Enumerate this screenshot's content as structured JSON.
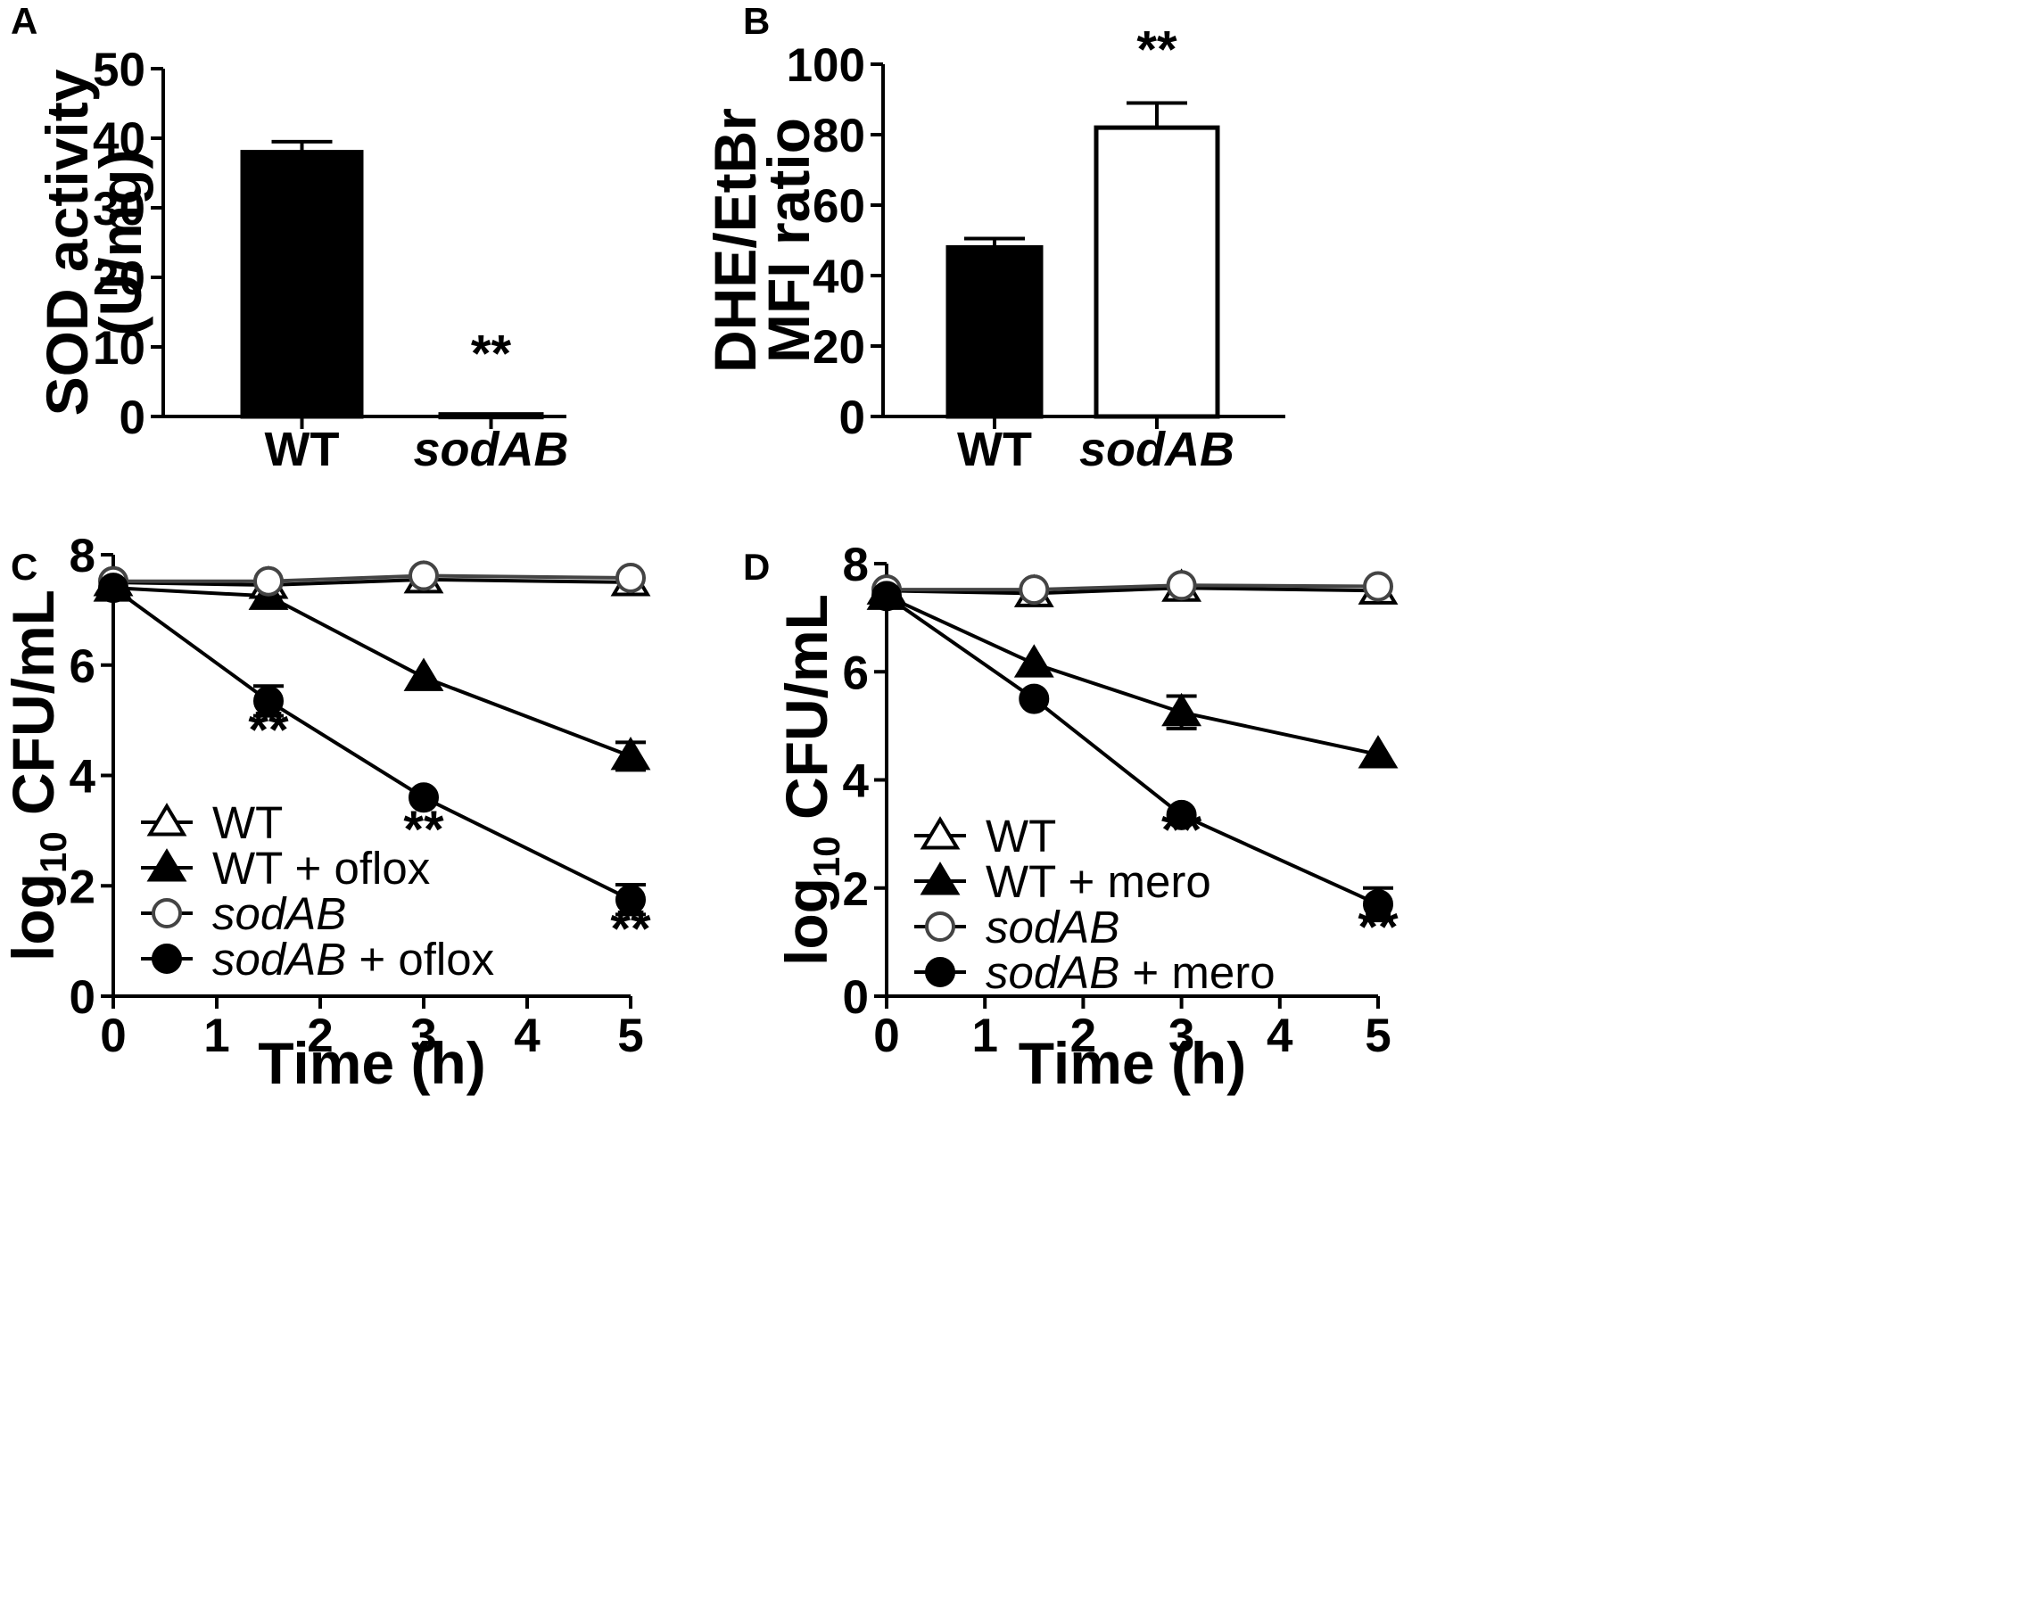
{
  "chart_data": [
    {
      "panel": "A",
      "type": "bar",
      "categories": [
        "WT",
        "sodAB"
      ],
      "category_italic": [
        false,
        true
      ],
      "values": [
        38,
        0.3
      ],
      "errors": [
        1.5,
        0
      ],
      "bar_fill": [
        "#000000",
        "#000000"
      ],
      "ylabel_lines": [
        "SOD activity",
        "(U/mg)"
      ],
      "ylim": [
        0,
        50
      ],
      "yticks": [
        0,
        10,
        20,
        30,
        40,
        50
      ],
      "annotations": [
        {
          "category": "sodAB",
          "text": "**"
        }
      ]
    },
    {
      "panel": "B",
      "type": "bar",
      "categories": [
        "WT",
        "sodAB"
      ],
      "category_italic": [
        false,
        true
      ],
      "values": [
        48,
        82
      ],
      "errors": [
        2.5,
        7
      ],
      "bar_fill": [
        "#000000",
        "#ffffff"
      ],
      "ylabel_lines": [
        "DHE/EtBr",
        "MFI ratio"
      ],
      "ylim": [
        0,
        100
      ],
      "yticks": [
        0,
        20,
        40,
        60,
        80,
        100
      ],
      "annotations": [
        {
          "category": "sodAB",
          "text": "**"
        }
      ]
    },
    {
      "panel": "C",
      "type": "line",
      "xlabel": "Time (h)",
      "ylabel_main": "log",
      "ylabel_sub": "10",
      "ylabel_rest": " CFU/mL",
      "xlim": [
        0,
        5
      ],
      "ylim": [
        0,
        8
      ],
      "xticks": [
        0,
        1,
        2,
        3,
        4,
        5
      ],
      "yticks": [
        0,
        2,
        4,
        6,
        8
      ],
      "series": [
        {
          "name": "WT",
          "marker": "triangle-open",
          "color": "#000000",
          "x": [
            0,
            1.5,
            3,
            5
          ],
          "y": [
            7.5,
            7.45,
            7.55,
            7.5
          ],
          "err": [
            0,
            0,
            0,
            0
          ]
        },
        {
          "name": "WT + oflox",
          "marker": "triangle-filled",
          "color": "#000000",
          "x": [
            0,
            1.5,
            3,
            5
          ],
          "y": [
            7.4,
            7.25,
            5.78,
            4.35
          ],
          "err": [
            0,
            0,
            0,
            0.25
          ]
        },
        {
          "name": "sodAB",
          "marker": "circle-open",
          "color": "#444444",
          "x": [
            0,
            1.5,
            3,
            5
          ],
          "y": [
            7.52,
            7.52,
            7.62,
            7.58
          ],
          "err": [
            0,
            0,
            0,
            0
          ]
        },
        {
          "name": "sodAB + oflox",
          "marker": "circle-filled",
          "color": "#000000",
          "x": [
            0,
            1.5,
            3,
            5
          ],
          "y": [
            7.4,
            5.35,
            3.6,
            1.75
          ],
          "err": [
            0,
            0.27,
            0,
            0.27
          ]
        }
      ],
      "legend": [
        {
          "marker": "triangle-open",
          "italic": "",
          "plain": "WT"
        },
        {
          "marker": "triangle-filled",
          "italic": "",
          "plain": "WT + oflox"
        },
        {
          "marker": "circle-open",
          "italic": "sodAB",
          "plain": ""
        },
        {
          "marker": "circle-filled",
          "italic": "sodAB",
          "plain": " + oflox"
        }
      ],
      "annotations": [
        {
          "x": 1.5,
          "y": 4.5,
          "text": "**"
        },
        {
          "x": 3,
          "y": 2.7,
          "text": "**"
        },
        {
          "x": 5,
          "y": 0.9,
          "text": "**"
        }
      ]
    },
    {
      "panel": "D",
      "type": "line",
      "xlabel": "Time (h)",
      "ylabel_main": "log",
      "ylabel_sub": "10",
      "ylabel_rest": " CFU/mL",
      "xlim": [
        0,
        5
      ],
      "ylim": [
        0,
        8
      ],
      "xticks": [
        0,
        1,
        2,
        3,
        4,
        5
      ],
      "yticks": [
        0,
        2,
        4,
        6,
        8
      ],
      "series": [
        {
          "name": "WT",
          "marker": "triangle-open",
          "color": "#000000",
          "x": [
            0,
            1.5,
            3,
            5
          ],
          "y": [
            7.5,
            7.45,
            7.55,
            7.5
          ],
          "err": [
            0,
            0,
            0,
            0
          ]
        },
        {
          "name": "WT + mero",
          "marker": "triangle-filled",
          "color": "#000000",
          "x": [
            0,
            1.5,
            3,
            5
          ],
          "y": [
            7.4,
            6.15,
            5.25,
            4.47
          ],
          "err": [
            0,
            0,
            0.3,
            0
          ]
        },
        {
          "name": "sodAB",
          "marker": "circle-open",
          "color": "#444444",
          "x": [
            0,
            1.5,
            3,
            5
          ],
          "y": [
            7.52,
            7.52,
            7.6,
            7.58
          ],
          "err": [
            0,
            0,
            0,
            0
          ]
        },
        {
          "name": "sodAB + mero",
          "marker": "circle-filled",
          "color": "#000000",
          "x": [
            0,
            1.5,
            3,
            5
          ],
          "y": [
            7.4,
            5.5,
            3.35,
            1.7
          ],
          "err": [
            0,
            0,
            0,
            0.3
          ]
        }
      ],
      "legend": [
        {
          "marker": "triangle-open",
          "italic": "",
          "plain": "WT"
        },
        {
          "marker": "triangle-filled",
          "italic": "",
          "plain": "WT + mero"
        },
        {
          "marker": "circle-open",
          "italic": "sodAB",
          "plain": ""
        },
        {
          "marker": "circle-filled",
          "italic": "sodAB",
          "plain": " + mero"
        }
      ],
      "annotations": [
        {
          "x": 3,
          "y": 2.75,
          "text": "**"
        },
        {
          "x": 5,
          "y": 0.95,
          "text": "**"
        }
      ]
    }
  ]
}
